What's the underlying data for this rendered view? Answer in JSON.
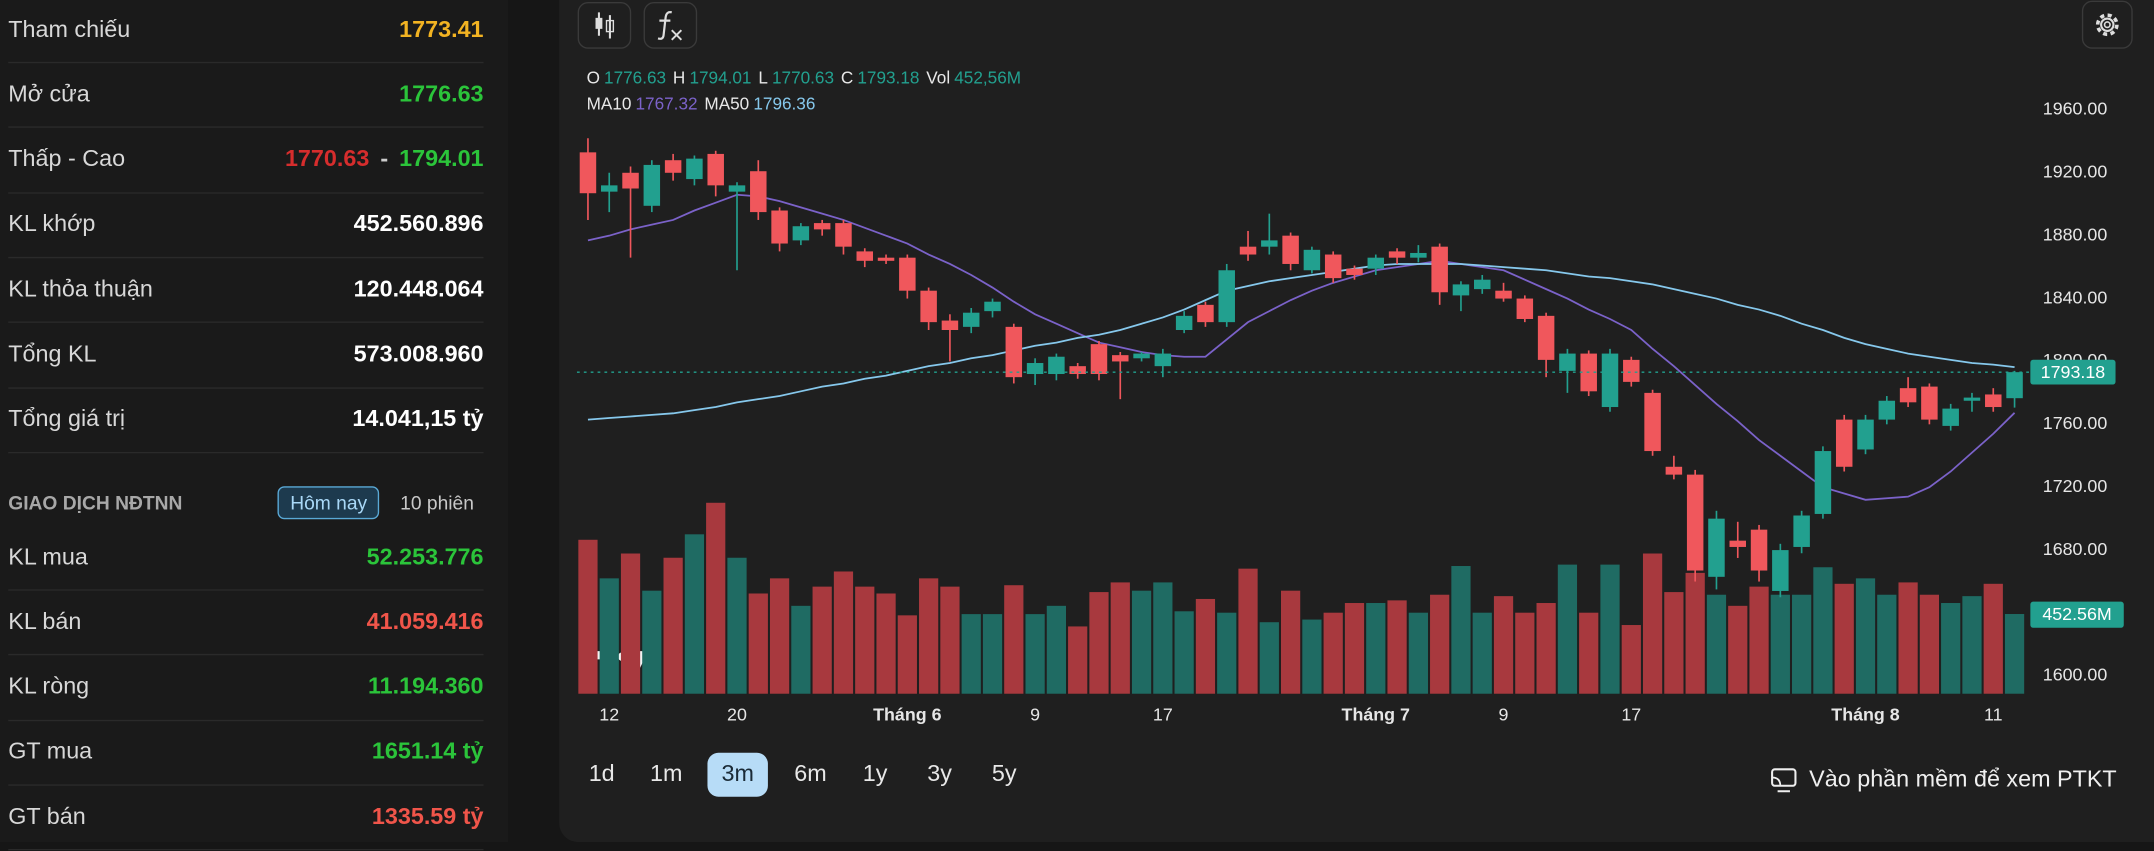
{
  "stats": [
    {
      "label": "Tham chiếu",
      "value": "1773.41",
      "color": "#f2b322"
    },
    {
      "label": "Mở cửa",
      "value": "1776.63",
      "color": "#2bc43a"
    },
    {
      "label": "Thấp - Cao",
      "low": "1770.63",
      "separator": "-",
      "high": "1794.01",
      "low_color": "#d62d2d",
      "high_color": "#2bc43a"
    },
    {
      "label": "KL khớp",
      "value": "452.560.896",
      "color": "#ffffff"
    },
    {
      "label": "KL thỏa thuận",
      "value": "120.448.064",
      "color": "#ffffff"
    },
    {
      "label": "Tổng KL",
      "value": "573.008.960",
      "color": "#ffffff"
    },
    {
      "label": "Tổng giá trị",
      "value": "14.041,15 tỷ",
      "color": "#ffffff"
    }
  ],
  "foreign": {
    "title": "GIAO DỊCH NĐTNN",
    "tabs": [
      "Hôm nay",
      "10 phiên"
    ],
    "active_tab": 0,
    "rows": [
      {
        "label": "KL mua",
        "value": "52.253.776",
        "color": "#2bc43a"
      },
      {
        "label": "KL bán",
        "value": "41.059.416",
        "color": "#f0554a"
      },
      {
        "label": "KL ròng",
        "value": "11.194.360",
        "color": "#2bc43a"
      },
      {
        "label": "GT mua",
        "value": "1651.14 tỷ",
        "color": "#2bc43a"
      },
      {
        "label": "GT bán",
        "value": "1335.59 tỷ",
        "color": "#f0554a"
      }
    ]
  },
  "periods": [
    "1d",
    "1m",
    "3m",
    "6m",
    "1y",
    "3y",
    "5y"
  ],
  "active_period": 2,
  "cta": "Vào phần mềm để xem PTKT",
  "chart_data": {
    "type": "candlestick",
    "ohlc_labels": [
      "O",
      "H",
      "L",
      "C",
      "Vol"
    ],
    "volume_legend_label": "452,56M",
    "volume_tag_label": "452.56M",
    "up_color": "#22a08f",
    "down_color": "#f0575c",
    "volume_up_color": "#1f6b63",
    "volume_down_color": "#a8393e",
    "grid": false,
    "ylim": [
      1600,
      1960
    ],
    "yticks": [
      {
        "value": 1600,
        "label": "1600.00"
      },
      {
        "value": 1680,
        "label": "1680.00"
      },
      {
        "value": 1720,
        "label": "1720.00"
      },
      {
        "value": 1760,
        "label": "1760.00"
      },
      {
        "value": 1800,
        "label": "1800.00"
      },
      {
        "value": 1840,
        "label": "1840.00"
      },
      {
        "value": 1880,
        "label": "1880.00"
      },
      {
        "value": 1920,
        "label": "1920.00"
      },
      {
        "value": 1960,
        "label": "1960.00"
      }
    ],
    "categories": [
      null,
      "12",
      null,
      null,
      null,
      null,
      null,
      "20",
      null,
      null,
      null,
      null,
      null,
      null,
      null,
      "Tháng 6",
      null,
      null,
      null,
      null,
      null,
      "9",
      null,
      null,
      null,
      null,
      null,
      "17",
      null,
      null,
      null,
      null,
      null,
      null,
      null,
      null,
      null,
      "Tháng 7",
      null,
      null,
      null,
      null,
      null,
      "9",
      null,
      null,
      null,
      null,
      null,
      "17",
      null,
      null,
      null,
      null,
      null,
      null,
      null,
      null,
      null,
      null,
      "Tháng 8",
      null,
      null,
      null,
      null,
      null,
      "11",
      null
    ],
    "open": [
      1933,
      1908,
      1920,
      1899,
      1928,
      1916,
      1932,
      1908,
      1921,
      1896,
      1877,
      1888,
      1888,
      1870,
      1866,
      1866,
      1845,
      1826,
      1822,
      1832,
      1822,
      1792,
      1792,
      1797,
      1811,
      1804,
      1802,
      1797,
      1820,
      1836,
      1825,
      1873,
      1873,
      1880,
      1858,
      1868,
      1859,
      1859,
      1870,
      1866,
      1873,
      1842,
      1846,
      1845,
      1840,
      1829,
      1794,
      1805,
      1771,
      1801,
      1780,
      1733,
      1728,
      1663,
      1686,
      1693,
      1654,
      1682,
      1703,
      1763,
      1744,
      1763,
      1783,
      1784,
      1759,
      1775,
      1779,
      1776.63
    ],
    "high": [
      1942,
      1920,
      1924,
      1928,
      1932,
      1931,
      1934,
      1914,
      1928,
      1898,
      1888,
      1890,
      1890,
      1872,
      1868,
      1868,
      1847,
      1830,
      1834,
      1840,
      1824,
      1802,
      1805,
      1799,
      1813,
      1806,
      1806,
      1808,
      1832,
      1838,
      1862,
      1883,
      1894,
      1882,
      1873,
      1870,
      1861,
      1868,
      1872,
      1874,
      1875,
      1851,
      1855,
      1850,
      1842,
      1831,
      1808,
      1807,
      1808,
      1803,
      1782,
      1740,
      1731,
      1705,
      1698,
      1696,
      1684,
      1705,
      1746,
      1766,
      1766,
      1778,
      1790,
      1786,
      1773,
      1780,
      1783,
      1794.01
    ],
    "low": [
      1890,
      1895,
      1866,
      1895,
      1915,
      1912,
      1905,
      1858,
      1890,
      1870,
      1874,
      1880,
      1868,
      1860,
      1862,
      1840,
      1820,
      1800,
      1818,
      1828,
      1786,
      1785,
      1788,
      1789,
      1788,
      1776,
      1800,
      1790,
      1818,
      1822,
      1822,
      1864,
      1868,
      1858,
      1856,
      1850,
      1852,
      1855,
      1862,
      1863,
      1836,
      1832,
      1843,
      1838,
      1825,
      1790,
      1780,
      1778,
      1768,
      1784,
      1740,
      1725,
      1660,
      1655,
      1675,
      1660,
      1650,
      1678,
      1700,
      1730,
      1741,
      1760,
      1771,
      1760,
      1756,
      1768,
      1768,
      1770.63
    ],
    "close": [
      1907,
      1912,
      1910,
      1925,
      1920,
      1929,
      1912,
      1912,
      1895,
      1875,
      1886,
      1884,
      1873,
      1864,
      1864,
      1845,
      1825,
      1820,
      1831,
      1838,
      1790,
      1799,
      1803,
      1792,
      1792,
      1800,
      1805,
      1805,
      1829,
      1825,
      1858,
      1868,
      1877,
      1862,
      1871,
      1853,
      1855,
      1866,
      1866,
      1869,
      1844,
      1849,
      1852,
      1840,
      1827,
      1801,
      1805,
      1781,
      1805,
      1787,
      1743,
      1728,
      1667,
      1700,
      1682,
      1667,
      1680,
      1702,
      1743,
      1733,
      1763,
      1775,
      1774,
      1763,
      1770,
      1777,
      1771,
      1793.18
    ],
    "volume": [
      874,
      655,
      796,
      585,
      772,
      905,
      1084,
      772,
      569,
      655,
      499,
      608,
      694,
      608,
      569,
      445,
      655,
      608,
      452,
      452,
      616,
      452,
      499,
      382,
      577,
      632,
      585,
      632,
      468,
      538,
      460,
      710,
      406,
      585,
      421,
      460,
      515,
      515,
      530,
      460,
      562,
      725,
      460,
      554,
      460,
      515,
      733,
      460,
      733,
      390,
      796,
      577,
      686,
      562,
      499,
      608,
      562,
      562,
      718,
      624,
      655,
      562,
      632,
      562,
      515,
      554,
      624,
      452.56
    ],
    "series": [
      {
        "name": "MA10",
        "color": "#7b62c9",
        "values": [
          1877,
          1880,
          1884,
          1887,
          1890,
          1896,
          1901,
          1906,
          1905,
          1902,
          1898,
          1894,
          1890,
          1885,
          1880,
          1875,
          1868,
          1862,
          1855,
          1847,
          1838,
          1830,
          1824,
          1818,
          1812,
          1809,
          1806,
          1804,
          1803,
          1803,
          1814,
          1825,
          1832,
          1839,
          1845,
          1850,
          1854,
          1858,
          1860,
          1862,
          1864,
          1862,
          1860,
          1858,
          1852,
          1846,
          1840,
          1833,
          1827,
          1820,
          1808,
          1797,
          1785,
          1773,
          1762,
          1750,
          1740,
          1730,
          1720,
          1716,
          1712,
          1713,
          1714,
          1720,
          1730,
          1742,
          1754,
          1767.32
        ]
      },
      {
        "name": "MA50",
        "color": "#86c8ec",
        "values": [
          1763,
          1764,
          1765,
          1766,
          1767,
          1769,
          1771,
          1774,
          1776,
          1778,
          1781,
          1784,
          1786,
          1789,
          1791,
          1794,
          1797,
          1799,
          1802,
          1804,
          1807,
          1810,
          1812,
          1815,
          1817,
          1820,
          1824,
          1828,
          1833,
          1839,
          1845,
          1848,
          1851,
          1853,
          1855,
          1857,
          1859,
          1861,
          1862,
          1862,
          1862,
          1862,
          1861,
          1860,
          1859,
          1858,
          1856,
          1854,
          1853,
          1851,
          1849,
          1846,
          1843,
          1840,
          1836,
          1833,
          1829,
          1824,
          1820,
          1815,
          1811,
          1808,
          1805,
          1803,
          1801,
          1799,
          1798,
          1796.36
        ]
      }
    ]
  }
}
